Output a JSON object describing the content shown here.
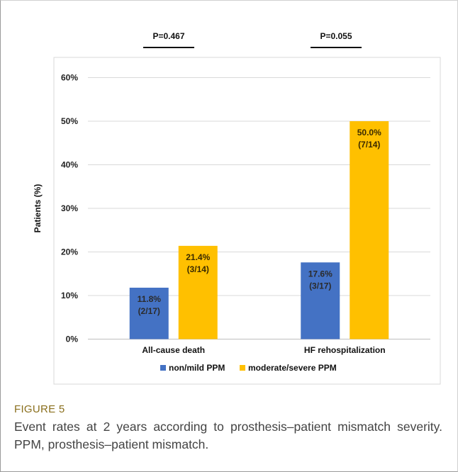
{
  "p_values": [
    "P=0.467",
    "P=0.055"
  ],
  "figure_label": "FIGURE 5",
  "figure_caption": "Event rates at 2 years according to prosthesis–patient mismatch severity. PPM, prosthesis–patient mismatch.",
  "chart_data": {
    "type": "bar",
    "categories": [
      "All-cause death",
      "HF rehospitalization"
    ],
    "series": [
      {
        "name": "non/mild PPM",
        "values": [
          11.8,
          17.6
        ],
        "labels": [
          [
            "11.8%",
            "(2/17)"
          ],
          [
            "17.6%",
            "(3/17)"
          ]
        ],
        "color": "#4472c4"
      },
      {
        "name": "moderate/severe PPM",
        "values": [
          21.4,
          50.0
        ],
        "labels": [
          [
            "21.4%",
            "(3/14)"
          ],
          [
            "50.0%",
            "(7/14)"
          ]
        ],
        "color": "#ffc000"
      }
    ],
    "ylabel": "Patients (%)",
    "ylim": [
      0,
      60
    ],
    "yticks": [
      "0%",
      "10%",
      "20%",
      "30%",
      "40%",
      "50%",
      "60%"
    ],
    "grid": true,
    "legend": "bottom"
  }
}
